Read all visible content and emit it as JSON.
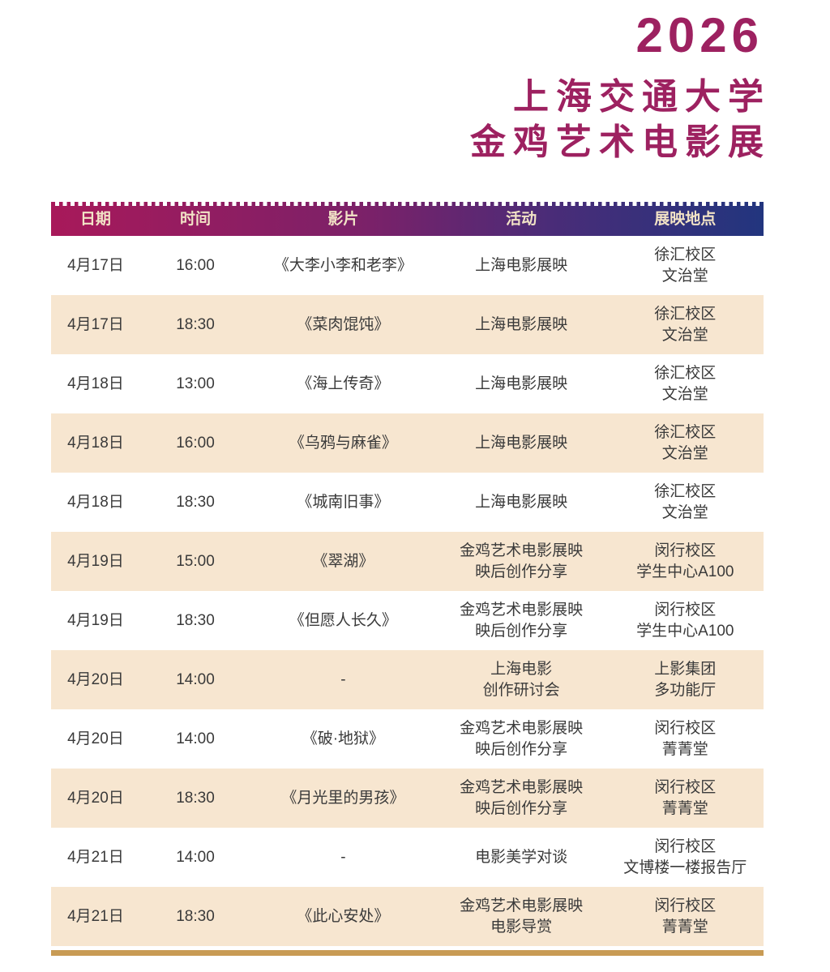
{
  "title": {
    "year": "2026",
    "line1": "上海交通大学",
    "line2": "金鸡艺术电影展"
  },
  "colors": {
    "title_magenta": "#9D2160",
    "header_gradient_left": "#A8195A",
    "header_gradient_right": "#22357E",
    "header_text": "#F2E3C6",
    "row_alt_beige": "#F7E6D0",
    "body_text": "#3a3a3a",
    "gold_bar": "#C89B54"
  },
  "table": {
    "columns": [
      "日期",
      "时间",
      "影片",
      "活动",
      "展映地点"
    ],
    "rows": [
      {
        "date": "4月17日",
        "time": "16:00",
        "film": "《大李小李和老李》",
        "activity": [
          "上海电影展映"
        ],
        "venue": [
          "徐汇校区",
          "文治堂"
        ]
      },
      {
        "date": "4月17日",
        "time": "18:30",
        "film": "《菜肉馄饨》",
        "activity": [
          "上海电影展映"
        ],
        "venue": [
          "徐汇校区",
          "文治堂"
        ]
      },
      {
        "date": "4月18日",
        "time": "13:00",
        "film": "《海上传奇》",
        "activity": [
          "上海电影展映"
        ],
        "venue": [
          "徐汇校区",
          "文治堂"
        ]
      },
      {
        "date": "4月18日",
        "time": "16:00",
        "film": "《乌鸦与麻雀》",
        "activity": [
          "上海电影展映"
        ],
        "venue": [
          "徐汇校区",
          "文治堂"
        ]
      },
      {
        "date": "4月18日",
        "time": "18:30",
        "film": "《城南旧事》",
        "activity": [
          "上海电影展映"
        ],
        "venue": [
          "徐汇校区",
          "文治堂"
        ]
      },
      {
        "date": "4月19日",
        "time": "15:00",
        "film": "《翠湖》",
        "activity": [
          "金鸡艺术电影展映",
          "映后创作分享"
        ],
        "venue": [
          "闵行校区",
          "学生中心A100"
        ]
      },
      {
        "date": "4月19日",
        "time": "18:30",
        "film": "《但愿人长久》",
        "activity": [
          "金鸡艺术电影展映",
          "映后创作分享"
        ],
        "venue": [
          "闵行校区",
          "学生中心A100"
        ]
      },
      {
        "date": "4月20日",
        "time": "14:00",
        "film": "-",
        "activity": [
          "上海电影",
          "创作研讨会"
        ],
        "venue": [
          "上影集团",
          "多功能厅"
        ]
      },
      {
        "date": "4月20日",
        "time": "14:00",
        "film": "《破·地狱》",
        "activity": [
          "金鸡艺术电影展映",
          "映后创作分享"
        ],
        "venue": [
          "闵行校区",
          "菁菁堂"
        ]
      },
      {
        "date": "4月20日",
        "time": "18:30",
        "film": "《月光里的男孩》",
        "activity": [
          "金鸡艺术电影展映",
          "映后创作分享"
        ],
        "venue": [
          "闵行校区",
          "菁菁堂"
        ]
      },
      {
        "date": "4月21日",
        "time": "14:00",
        "film": "-",
        "activity": [
          "电影美学对谈"
        ],
        "venue": [
          "闵行校区",
          "文博楼一楼报告厅"
        ]
      },
      {
        "date": "4月21日",
        "time": "18:30",
        "film": "《此心安处》",
        "activity": [
          "金鸡艺术电影展映",
          "电影导赏"
        ],
        "venue": [
          "闵行校区",
          "菁菁堂"
        ]
      }
    ]
  }
}
